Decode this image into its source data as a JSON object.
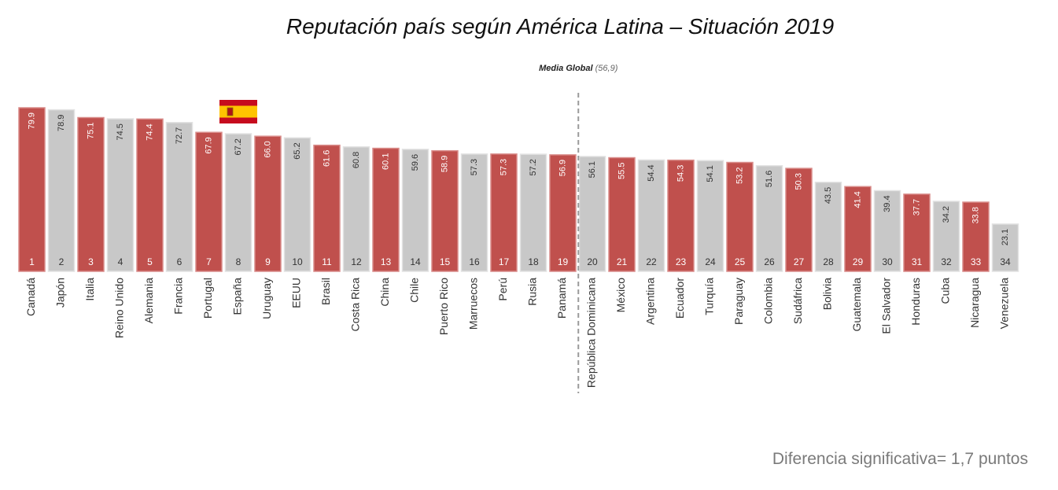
{
  "chart_data": {
    "type": "bar",
    "title": "Reputación país según América Latina – Situación 2019",
    "categories": [
      "Canadá",
      "Japón",
      "Italia",
      "Reino Unido",
      "Alemania",
      "Francia",
      "Portugal",
      "España",
      "Uruguay",
      "EEUU",
      "Brasil",
      "Costa Rica",
      "China",
      "Chile",
      "Puerto Rico",
      "Marruecos",
      "Perú",
      "Rusia",
      "Panamá",
      "República Dominicana",
      "México",
      "Argentina",
      "Ecuador",
      "Turquía",
      "Paraguay",
      "Colombia",
      "Sudáfrica",
      "Bolivia",
      "Guatemala",
      "El Salvador",
      "Honduras",
      "Cuba",
      "Nicaragua",
      "Venezuela"
    ],
    "values": [
      79.9,
      78.9,
      75.1,
      74.5,
      74.4,
      72.7,
      67.9,
      67.2,
      66.0,
      65.2,
      61.6,
      60.8,
      60.1,
      59.6,
      58.9,
      57.3,
      57.3,
      57.2,
      56.9,
      56.1,
      55.5,
      54.4,
      54.3,
      54.1,
      53.2,
      51.6,
      50.3,
      43.5,
      41.4,
      39.4,
      37.7,
      34.2,
      33.8,
      23.1
    ],
    "value_labels": [
      "79.9",
      "78.9",
      "75.1",
      "74.5",
      "74.4",
      "72.7",
      "67.9",
      "67.2",
      "66.0",
      "65.2",
      "61.6",
      "60.8",
      "60.1",
      "59.6",
      "58.9",
      "57.3",
      "57.3",
      "57.2",
      "56.9",
      "56.1",
      "55.5",
      "54.4",
      "54.3",
      "54.1",
      "53.2",
      "51.6",
      "50.3",
      "43.5",
      "41.4",
      "39.4",
      "37.7",
      "34.2",
      "33.8",
      "23.1"
    ],
    "ranks": [
      "1",
      "2",
      "3",
      "4",
      "5",
      "6",
      "7",
      "8",
      "9",
      "10",
      "11",
      "12",
      "13",
      "14",
      "15",
      "16",
      "17",
      "18",
      "19",
      "20",
      "21",
      "22",
      "23",
      "24",
      "25",
      "26",
      "27",
      "28",
      "29",
      "30",
      "31",
      "32",
      "33",
      "34"
    ],
    "colors": [
      "red",
      "gray",
      "red",
      "gray",
      "red",
      "gray",
      "red",
      "gray",
      "red",
      "gray",
      "red",
      "gray",
      "red",
      "gray",
      "red",
      "gray",
      "red",
      "gray",
      "red",
      "gray",
      "red",
      "gray",
      "red",
      "gray",
      "red",
      "gray",
      "red",
      "gray",
      "red",
      "gray",
      "red",
      "gray",
      "red",
      "gray"
    ],
    "palette": {
      "red": "#c0504d",
      "gray": "#c8c8c8"
    },
    "highlight_category": "España",
    "reference_line": {
      "label": "Media Global",
      "value_text": "(56,9)",
      "value": 56.9,
      "position_after_category": "Panamá"
    },
    "ylim": [
      0,
      80
    ],
    "grid": false,
    "legend": "none"
  },
  "note": "Diferencia significativa= 1,7 puntos"
}
